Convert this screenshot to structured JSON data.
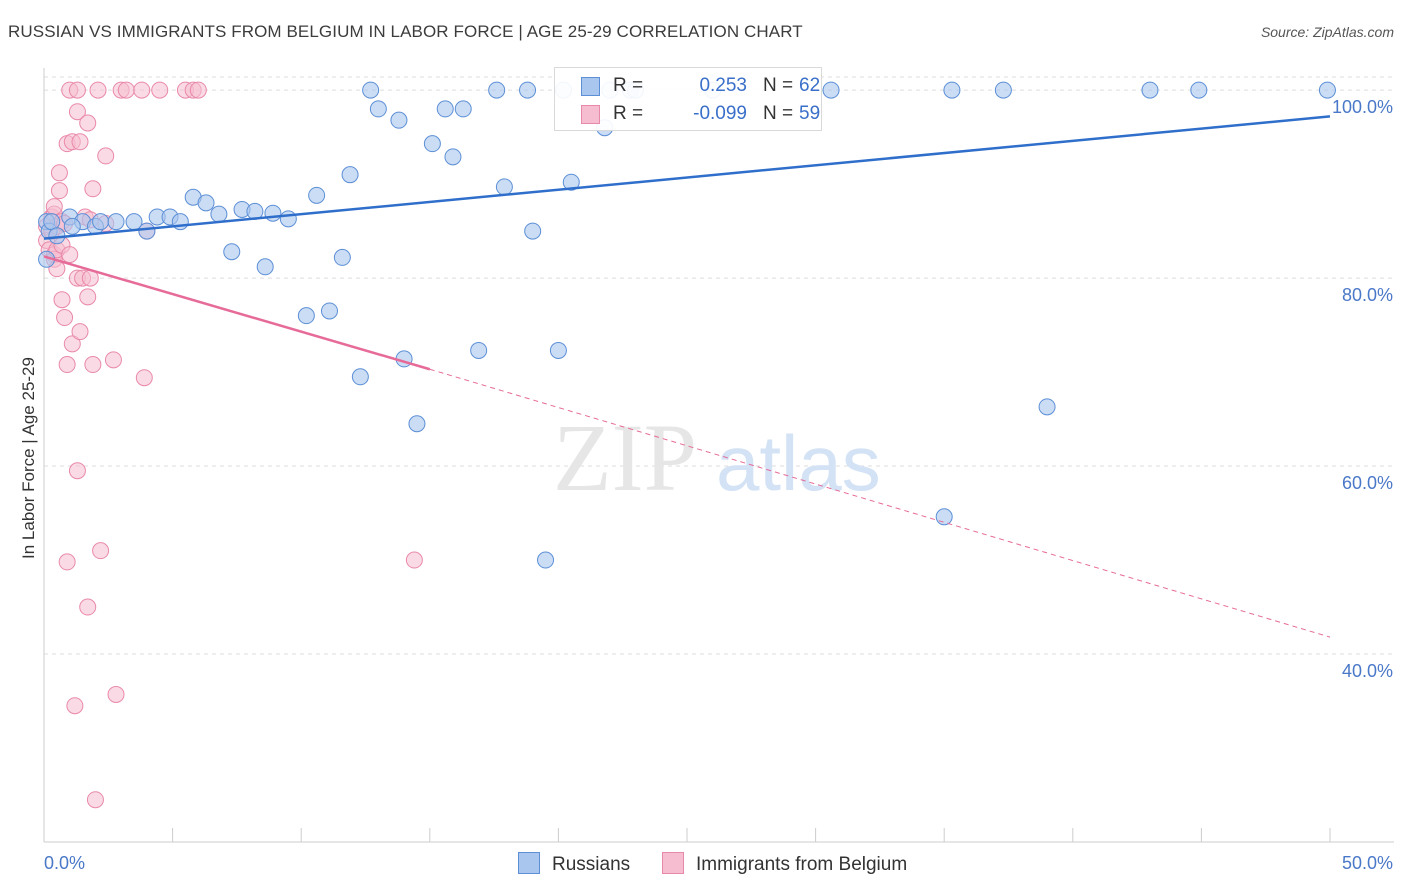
{
  "header": {
    "title": "RUSSIAN VS IMMIGRANTS FROM BELGIUM IN LABOR FORCE | AGE 25-29 CORRELATION CHART",
    "source": "Source: ZipAtlas.com"
  },
  "legend": {
    "rows": [
      {
        "r_label": "R =",
        "r_value": "0.253",
        "n_label": "N =",
        "n_value": "62"
      },
      {
        "r_label": "R =",
        "r_value": "-0.099",
        "n_label": "N =",
        "n_value": "59"
      }
    ]
  },
  "bottom_legend": {
    "russians": "Russians",
    "belgium": "Immigrants from Belgium"
  },
  "watermark": {
    "zip": "ZIP",
    "atlas": "atlas"
  },
  "colors": {
    "russians_fill": "#a9c6ef",
    "russians_stroke": "#5c8fd6",
    "russians_line": "#2f6fcb",
    "belgium_fill": "#f6bdd0",
    "belgium_stroke": "#e989a9",
    "belgium_line": "#e66b98",
    "tick_text": "#4a78c8",
    "grid": "#dddddd"
  },
  "chart_data": {
    "type": "scatter",
    "title": "RUSSIAN VS IMMIGRANTS FROM BELGIUM IN LABOR FORCE | AGE 25-29 CORRELATION CHART",
    "xlabel": "",
    "ylabel": "In Labor Force | Age 25-29",
    "xlim": [
      0,
      50
    ],
    "ylim": [
      20,
      101.5
    ],
    "x_tick_labels": [
      "0.0%",
      "50.0%"
    ],
    "y_ticks": [
      40,
      60,
      80,
      100
    ],
    "y_tick_labels": [
      "40.0%",
      "60.0%",
      "80.0%",
      "100.0%"
    ],
    "grid": true,
    "legend_position": "top-center",
    "series": [
      {
        "name": "Russians",
        "r": 0.253,
        "n": 62,
        "trend": {
          "x": [
            0,
            50
          ],
          "y": [
            84.2,
            97.2
          ],
          "style": "solid"
        },
        "points": [
          [
            0.1,
            82
          ],
          [
            0.1,
            86
          ],
          [
            0.2,
            85
          ],
          [
            0.3,
            86
          ],
          [
            0.5,
            84.5
          ],
          [
            1,
            86.5
          ],
          [
            1.5,
            86
          ],
          [
            2,
            85.5
          ],
          [
            2.2,
            86
          ],
          [
            2.8,
            86
          ],
          [
            3.5,
            86
          ],
          [
            4,
            85
          ],
          [
            4.4,
            86.5
          ],
          [
            4.9,
            86.5
          ],
          [
            5.3,
            86
          ],
          [
            5.8,
            88.6
          ],
          [
            6.3,
            88
          ],
          [
            6.8,
            86.8
          ],
          [
            7.3,
            82.8
          ],
          [
            7.7,
            87.3
          ],
          [
            8.2,
            87.1
          ],
          [
            8.6,
            81.2
          ],
          [
            8.9,
            86.9
          ],
          [
            9.5,
            86.3
          ],
          [
            10.2,
            76
          ],
          [
            10.6,
            88.8
          ],
          [
            11.1,
            76.5
          ],
          [
            11.6,
            82.2
          ],
          [
            11.9,
            91
          ],
          [
            12.3,
            69.5
          ],
          [
            12.7,
            100
          ],
          [
            13,
            98
          ],
          [
            13.8,
            96.8
          ],
          [
            14,
            71.4
          ],
          [
            14.5,
            64.5
          ],
          [
            15.1,
            94.3
          ],
          [
            15.6,
            98
          ],
          [
            15.9,
            92.9
          ],
          [
            16.3,
            98
          ],
          [
            16.9,
            72.3
          ],
          [
            17.6,
            100
          ],
          [
            17.9,
            89.7
          ],
          [
            18.8,
            100
          ],
          [
            19,
            85
          ],
          [
            19.5,
            50
          ],
          [
            20,
            72.3
          ],
          [
            20.2,
            100
          ],
          [
            20.5,
            90.2
          ],
          [
            22,
            100
          ],
          [
            22.8,
            100
          ],
          [
            23,
            100
          ],
          [
            26,
            100
          ],
          [
            30.6,
            100
          ],
          [
            35,
            54.6
          ],
          [
            35.3,
            100
          ],
          [
            39,
            66.3
          ],
          [
            37.3,
            100
          ],
          [
            43,
            100
          ],
          [
            44.9,
            100
          ],
          [
            49.9,
            100
          ],
          [
            1.1,
            85.5
          ],
          [
            21.8,
            96
          ]
        ]
      },
      {
        "name": "Immigrants from Belgium",
        "r": -0.099,
        "n": 59,
        "trend": {
          "x": [
            0,
            15
          ],
          "y": [
            82.3,
            70.3
          ],
          "style": "solid",
          "dashed_extension": {
            "x": [
              15,
              50
            ],
            "y": [
              70.3,
              41.8
            ]
          }
        },
        "points": [
          [
            0.1,
            85.5
          ],
          [
            0.1,
            84
          ],
          [
            0.2,
            83
          ],
          [
            0.3,
            86.5
          ],
          [
            0.3,
            85
          ],
          [
            0.4,
            86.8
          ],
          [
            0.4,
            82.5
          ],
          [
            0.4,
            87.6
          ],
          [
            0.4,
            82
          ],
          [
            0.5,
            85.5
          ],
          [
            0.5,
            83
          ],
          [
            0.5,
            81
          ],
          [
            0.6,
            89.3
          ],
          [
            0.6,
            91.2
          ],
          [
            0.7,
            86
          ],
          [
            0.7,
            83.5
          ],
          [
            0.7,
            77.7
          ],
          [
            0.8,
            75.8
          ],
          [
            0.8,
            85.8
          ],
          [
            0.9,
            94.3
          ],
          [
            0.9,
            70.8
          ],
          [
            0.9,
            49.8
          ],
          [
            1,
            82.5
          ],
          [
            1,
            100
          ],
          [
            1.1,
            94.5
          ],
          [
            1.1,
            73
          ],
          [
            1.2,
            34.5
          ],
          [
            1.3,
            100
          ],
          [
            1.3,
            97.7
          ],
          [
            1.3,
            80
          ],
          [
            1.3,
            59.5
          ],
          [
            1.4,
            94.5
          ],
          [
            1.4,
            74.3
          ],
          [
            1.5,
            80
          ],
          [
            1.6,
            86.5
          ],
          [
            1.7,
            78
          ],
          [
            1.7,
            45
          ],
          [
            1.7,
            96.5
          ],
          [
            1.8,
            80
          ],
          [
            1.8,
            86.2
          ],
          [
            1.9,
            70.8
          ],
          [
            1.9,
            89.5
          ],
          [
            2,
            24.5
          ],
          [
            2.1,
            100
          ],
          [
            2.2,
            51
          ],
          [
            2.4,
            93
          ],
          [
            2.4,
            85.8
          ],
          [
            2.7,
            71.3
          ],
          [
            2.8,
            35.7
          ],
          [
            3,
            100
          ],
          [
            3.2,
            100
          ],
          [
            3.8,
            100
          ],
          [
            3.9,
            69.4
          ],
          [
            4,
            85
          ],
          [
            4.5,
            100
          ],
          [
            5.5,
            100
          ],
          [
            5.8,
            100
          ],
          [
            6,
            100
          ],
          [
            14.4,
            50
          ]
        ]
      }
    ]
  }
}
